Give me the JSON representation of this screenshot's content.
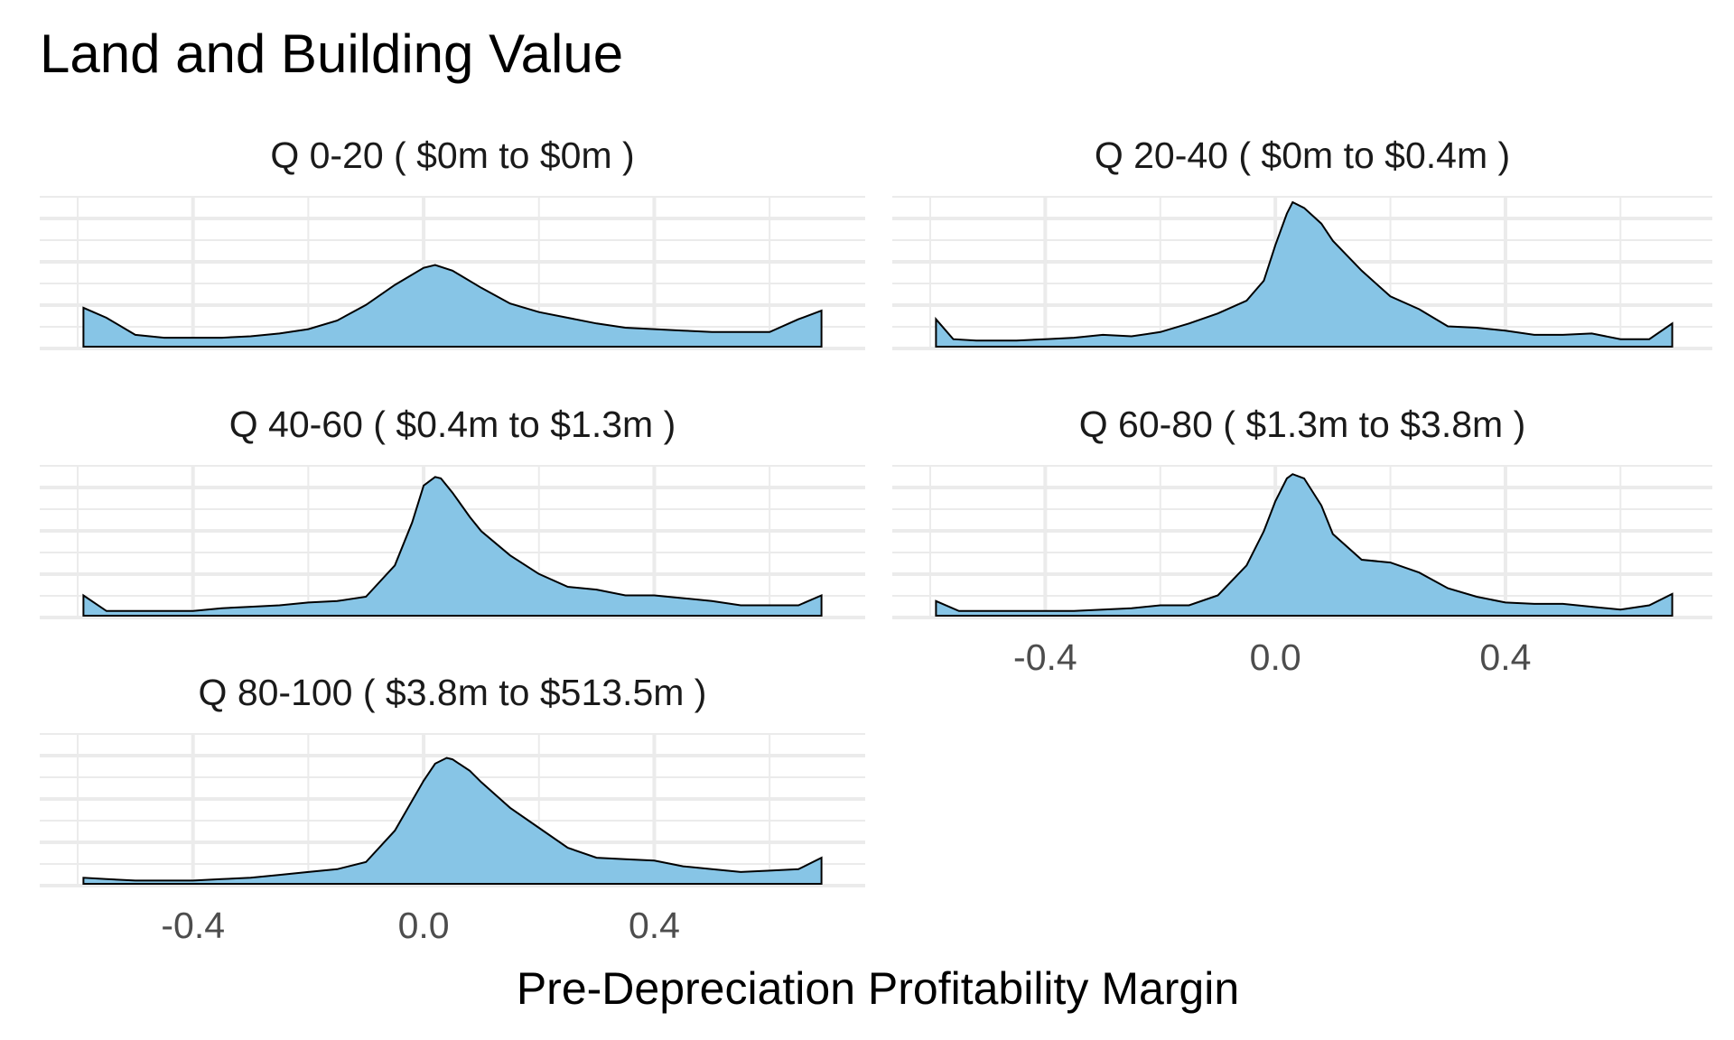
{
  "chart_data": {
    "type": "area",
    "title": "Land and Building Value",
    "xlabel": "Pre-Depreciation Profitability Margin",
    "ylabel": "",
    "xlim": [
      -0.6,
      0.7
    ],
    "x_ticks": [
      -0.4,
      0.0,
      0.4
    ],
    "x_tick_labels": [
      "-0.4",
      "0.0",
      "0.4"
    ],
    "grid": true,
    "legend": "none",
    "fill_color": "#87c5e6",
    "line_color": "#000000",
    "panels": [
      {
        "label": "Q 0-20   ( $0m to $0m )",
        "x": [
          -0.59,
          -0.55,
          -0.5,
          -0.45,
          -0.4,
          -0.35,
          -0.3,
          -0.25,
          -0.2,
          -0.15,
          -0.1,
          -0.05,
          0.0,
          0.02,
          0.05,
          0.1,
          0.15,
          0.2,
          0.25,
          0.3,
          0.35,
          0.4,
          0.45,
          0.5,
          0.55,
          0.6,
          0.65,
          0.69
        ],
        "y": [
          0.26,
          0.19,
          0.07,
          0.05,
          0.05,
          0.05,
          0.06,
          0.08,
          0.11,
          0.17,
          0.28,
          0.42,
          0.54,
          0.56,
          0.52,
          0.4,
          0.29,
          0.23,
          0.19,
          0.15,
          0.12,
          0.11,
          0.1,
          0.09,
          0.09,
          0.09,
          0.18,
          0.24
        ]
      },
      {
        "label": "Q 20-40   ( $0m to $0.4m )",
        "x": [
          -0.59,
          -0.56,
          -0.52,
          -0.45,
          -0.4,
          -0.35,
          -0.3,
          -0.25,
          -0.2,
          -0.15,
          -0.1,
          -0.05,
          -0.02,
          0.0,
          0.02,
          0.03,
          0.05,
          0.08,
          0.1,
          0.15,
          0.2,
          0.25,
          0.3,
          0.35,
          0.4,
          0.45,
          0.5,
          0.55,
          0.6,
          0.65,
          0.69
        ],
        "y": [
          0.18,
          0.04,
          0.03,
          0.03,
          0.04,
          0.05,
          0.07,
          0.06,
          0.09,
          0.15,
          0.22,
          0.31,
          0.45,
          0.7,
          0.92,
          1.0,
          0.96,
          0.85,
          0.73,
          0.52,
          0.34,
          0.25,
          0.13,
          0.12,
          0.1,
          0.07,
          0.07,
          0.08,
          0.04,
          0.04,
          0.15
        ]
      },
      {
        "label": "Q 40-60   ( $0.4m to $1.3m )",
        "x": [
          -0.59,
          -0.55,
          -0.5,
          -0.45,
          -0.4,
          -0.35,
          -0.3,
          -0.25,
          -0.2,
          -0.15,
          -0.1,
          -0.05,
          -0.02,
          0.0,
          0.02,
          0.03,
          0.05,
          0.08,
          0.1,
          0.15,
          0.2,
          0.25,
          0.3,
          0.35,
          0.4,
          0.45,
          0.5,
          0.55,
          0.6,
          0.65,
          0.69
        ],
        "y": [
          0.13,
          0.02,
          0.02,
          0.02,
          0.02,
          0.04,
          0.05,
          0.06,
          0.08,
          0.09,
          0.12,
          0.34,
          0.64,
          0.9,
          0.96,
          0.95,
          0.85,
          0.68,
          0.58,
          0.41,
          0.28,
          0.19,
          0.17,
          0.13,
          0.13,
          0.11,
          0.09,
          0.06,
          0.06,
          0.06,
          0.13
        ]
      },
      {
        "label": "Q 60-80   ( $1.3m to $3.8m )",
        "x": [
          -0.59,
          -0.55,
          -0.5,
          -0.45,
          -0.4,
          -0.35,
          -0.3,
          -0.25,
          -0.2,
          -0.15,
          -0.1,
          -0.05,
          -0.02,
          0.0,
          0.02,
          0.03,
          0.05,
          0.08,
          0.1,
          0.15,
          0.2,
          0.25,
          0.3,
          0.35,
          0.4,
          0.45,
          0.5,
          0.55,
          0.6,
          0.65,
          0.69
        ],
        "y": [
          0.09,
          0.02,
          0.02,
          0.02,
          0.02,
          0.02,
          0.03,
          0.04,
          0.06,
          0.06,
          0.13,
          0.34,
          0.58,
          0.79,
          0.95,
          0.98,
          0.95,
          0.76,
          0.56,
          0.38,
          0.36,
          0.29,
          0.18,
          0.12,
          0.08,
          0.07,
          0.07,
          0.05,
          0.03,
          0.06,
          0.14
        ]
      },
      {
        "label": "Q 80-100   ( $3.8m to $513.5m )",
        "x": [
          -0.59,
          -0.55,
          -0.5,
          -0.45,
          -0.4,
          -0.35,
          -0.3,
          -0.25,
          -0.2,
          -0.15,
          -0.1,
          -0.05,
          0.0,
          0.02,
          0.04,
          0.05,
          0.08,
          0.1,
          0.15,
          0.2,
          0.25,
          0.3,
          0.35,
          0.4,
          0.45,
          0.5,
          0.55,
          0.6,
          0.65,
          0.69
        ],
        "y": [
          0.03,
          0.02,
          0.01,
          0.01,
          0.01,
          0.02,
          0.03,
          0.05,
          0.07,
          0.09,
          0.14,
          0.36,
          0.71,
          0.83,
          0.87,
          0.86,
          0.78,
          0.7,
          0.52,
          0.38,
          0.24,
          0.17,
          0.16,
          0.15,
          0.11,
          0.09,
          0.07,
          0.08,
          0.09,
          0.17
        ]
      }
    ]
  }
}
